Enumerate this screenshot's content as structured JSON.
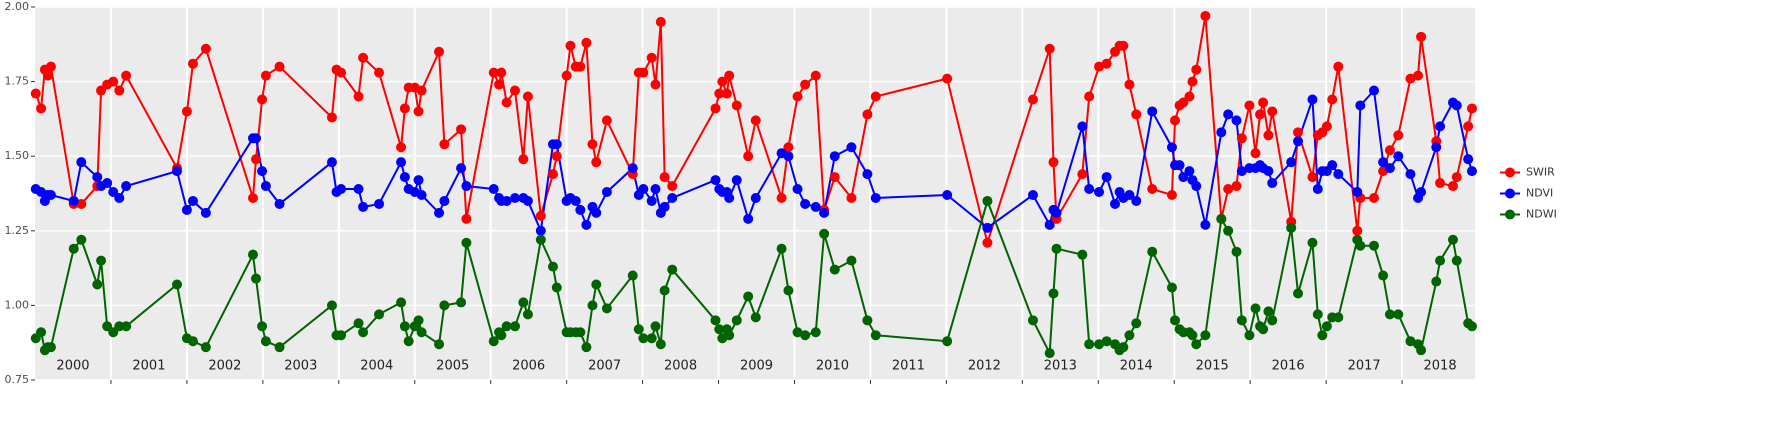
{
  "chart_data": {
    "type": "line",
    "x": [
      2000.01,
      2000.08,
      2000.13,
      2000.17,
      2000.21,
      2000.51,
      2000.61,
      2000.82,
      2000.87,
      2000.95,
      2001.03,
      2001.11,
      2001.2,
      2001.87,
      2002.0,
      2002.08,
      2002.25,
      2002.87,
      2002.91,
      2002.99,
      2003.04,
      2003.22,
      2003.91,
      2003.97,
      2004.03,
      2004.26,
      2004.32,
      2004.53,
      2004.82,
      2004.87,
      2004.92,
      2005.0,
      2005.05,
      2005.09,
      2005.32,
      2005.39,
      2005.61,
      2005.68,
      2006.04,
      2006.11,
      2006.14,
      2006.21,
      2006.32,
      2006.43,
      2006.49,
      2006.66,
      2006.82,
      2006.87,
      2007.0,
      2007.05,
      2007.12,
      2007.18,
      2007.26,
      2007.34,
      2007.39,
      2007.53,
      2007.87,
      2007.95,
      2008.01,
      2008.12,
      2008.17,
      2008.24,
      2008.29,
      2008.39,
      2008.96,
      2009.01,
      2009.05,
      2009.11,
      2009.14,
      2009.24,
      2009.39,
      2009.49,
      2009.83,
      2009.92,
      2010.04,
      2010.14,
      2010.28,
      2010.39,
      2010.53,
      2010.75,
      2010.96,
      2011.07,
      2012.01,
      2012.54,
      2013.14,
      2013.36,
      2013.41,
      2013.45,
      2013.79,
      2013.88,
      2014.01,
      2014.11,
      2014.22,
      2014.28,
      2014.33,
      2014.41,
      2014.5,
      2014.71,
      2014.97,
      2015.01,
      2015.07,
      2015.12,
      2015.2,
      2015.24,
      2015.29,
      2015.41,
      2015.62,
      2015.71,
      2015.82,
      2015.89,
      2015.99,
      2016.07,
      2016.13,
      2016.17,
      2016.24,
      2016.29,
      2016.54,
      2016.63,
      2016.82,
      2016.89,
      2016.95,
      2017.01,
      2017.08,
      2017.16,
      2017.41,
      2017.45,
      2017.63,
      2017.75,
      2017.84,
      2017.95,
      2018.11,
      2018.21,
      2018.25,
      2018.45,
      2018.5,
      2018.67,
      2018.72,
      2018.87,
      2018.92
    ],
    "series": [
      {
        "name": "SWIR",
        "color": "#ff0000",
        "values": [
          1.71,
          1.66,
          1.79,
          1.77,
          1.8,
          1.34,
          1.34,
          1.4,
          1.72,
          1.74,
          1.75,
          1.72,
          1.77,
          1.46,
          1.65,
          1.81,
          1.86,
          1.36,
          1.49,
          1.69,
          1.77,
          1.8,
          1.63,
          1.79,
          1.78,
          1.7,
          1.83,
          1.78,
          1.53,
          1.66,
          1.73,
          1.73,
          1.65,
          1.72,
          1.85,
          1.54,
          1.59,
          1.29,
          1.78,
          1.74,
          1.78,
          1.68,
          1.72,
          1.49,
          1.7,
          1.3,
          1.44,
          1.5,
          1.77,
          1.87,
          1.8,
          1.8,
          1.88,
          1.54,
          1.48,
          1.62,
          1.44,
          1.78,
          1.78,
          1.83,
          1.74,
          1.95,
          1.43,
          1.4,
          1.66,
          1.71,
          1.75,
          1.71,
          1.77,
          1.67,
          1.5,
          1.62,
          1.36,
          1.53,
          1.7,
          1.74,
          1.77,
          1.32,
          1.43,
          1.36,
          1.64,
          1.7,
          1.76,
          1.21,
          1.69,
          1.86,
          1.48,
          1.29,
          1.44,
          1.7,
          1.8,
          1.81,
          1.85,
          1.87,
          1.87,
          1.74,
          1.64,
          1.39,
          1.37,
          1.62,
          1.67,
          1.68,
          1.7,
          1.75,
          1.79,
          1.97,
          1.29,
          1.39,
          1.4,
          1.56,
          1.67,
          1.51,
          1.64,
          1.68,
          1.57,
          1.65,
          1.28,
          1.58,
          1.43,
          1.57,
          1.58,
          1.6,
          1.69,
          1.8,
          1.25,
          1.36,
          1.36,
          1.45,
          1.52,
          1.57,
          1.76,
          1.77,
          1.9,
          1.55,
          1.41,
          1.4,
          1.43,
          1.6,
          1.66
        ]
      },
      {
        "name": "NDVI",
        "color": "#0000ff",
        "values": [
          1.39,
          1.38,
          1.35,
          1.37,
          1.37,
          1.35,
          1.48,
          1.43,
          1.4,
          1.41,
          1.38,
          1.36,
          1.4,
          1.45,
          1.32,
          1.35,
          1.31,
          1.56,
          1.56,
          1.45,
          1.4,
          1.34,
          1.48,
          1.38,
          1.39,
          1.39,
          1.33,
          1.34,
          1.48,
          1.43,
          1.39,
          1.38,
          1.42,
          1.37,
          1.31,
          1.35,
          1.46,
          1.4,
          1.39,
          1.36,
          1.35,
          1.35,
          1.36,
          1.36,
          1.35,
          1.25,
          1.54,
          1.54,
          1.35,
          1.36,
          1.35,
          1.32,
          1.27,
          1.33,
          1.31,
          1.38,
          1.46,
          1.37,
          1.39,
          1.35,
          1.39,
          1.31,
          1.33,
          1.36,
          1.42,
          1.39,
          1.38,
          1.38,
          1.36,
          1.42,
          1.29,
          1.36,
          1.51,
          1.5,
          1.39,
          1.34,
          1.33,
          1.31,
          1.5,
          1.53,
          1.44,
          1.36,
          1.37,
          1.26,
          1.37,
          1.27,
          1.32,
          1.31,
          1.6,
          1.39,
          1.38,
          1.43,
          1.34,
          1.38,
          1.36,
          1.37,
          1.35,
          1.65,
          1.53,
          1.47,
          1.47,
          1.43,
          1.45,
          1.42,
          1.4,
          1.27,
          1.58,
          1.64,
          1.62,
          1.45,
          1.46,
          1.46,
          1.47,
          1.46,
          1.45,
          1.41,
          1.48,
          1.55,
          1.69,
          1.39,
          1.45,
          1.45,
          1.47,
          1.44,
          1.38,
          1.67,
          1.72,
          1.48,
          1.46,
          1.5,
          1.44,
          1.36,
          1.38,
          1.53,
          1.6,
          1.68,
          1.67,
          1.49,
          1.45
        ]
      },
      {
        "name": "NDWI",
        "color": "#006400",
        "values": [
          0.89,
          0.91,
          0.85,
          0.86,
          0.86,
          1.19,
          1.22,
          1.07,
          1.15,
          0.93,
          0.91,
          0.93,
          0.93,
          1.07,
          0.89,
          0.88,
          0.86,
          1.17,
          1.09,
          0.93,
          0.88,
          0.86,
          1.0,
          0.9,
          0.9,
          0.94,
          0.91,
          0.97,
          1.01,
          0.93,
          0.88,
          0.93,
          0.95,
          0.91,
          0.87,
          1.0,
          1.01,
          1.21,
          0.88,
          0.91,
          0.9,
          0.93,
          0.93,
          1.01,
          0.97,
          1.22,
          1.13,
          1.06,
          0.91,
          0.91,
          0.91,
          0.91,
          0.86,
          1.0,
          1.07,
          0.99,
          1.1,
          0.92,
          0.89,
          0.89,
          0.93,
          0.87,
          1.05,
          1.12,
          0.95,
          0.92,
          0.89,
          0.92,
          0.9,
          0.95,
          1.03,
          0.96,
          1.19,
          1.05,
          0.91,
          0.9,
          0.91,
          1.24,
          1.12,
          1.15,
          0.95,
          0.9,
          0.88,
          1.35,
          0.95,
          0.84,
          1.04,
          1.19,
          1.17,
          0.87,
          0.87,
          0.88,
          0.87,
          0.85,
          0.86,
          0.9,
          0.94,
          1.18,
          1.06,
          0.95,
          0.92,
          0.91,
          0.91,
          0.9,
          0.87,
          0.9,
          1.29,
          1.25,
          1.18,
          0.95,
          0.9,
          0.99,
          0.93,
          0.92,
          0.98,
          0.95,
          1.26,
          1.04,
          1.21,
          0.97,
          0.9,
          0.93,
          0.96,
          0.96,
          1.22,
          1.2,
          1.2,
          1.1,
          0.97,
          0.97,
          0.88,
          0.87,
          0.85,
          1.08,
          1.15,
          1.22,
          1.15,
          0.94,
          0.93
        ]
      }
    ],
    "xlim": [
      2000,
      2018.96
    ],
    "xticks": [
      {
        "value": 2000.5,
        "label": "2000"
      },
      {
        "value": 2001.5,
        "label": "2001"
      },
      {
        "value": 2002.5,
        "label": "2002"
      },
      {
        "value": 2003.5,
        "label": "2003"
      },
      {
        "value": 2004.5,
        "label": "2004"
      },
      {
        "value": 2005.5,
        "label": "2005"
      },
      {
        "value": 2006.5,
        "label": "2006"
      },
      {
        "value": 2007.5,
        "label": "2007"
      },
      {
        "value": 2008.5,
        "label": "2008"
      },
      {
        "value": 2009.5,
        "label": "2009"
      },
      {
        "value": 2010.5,
        "label": "2010"
      },
      {
        "value": 2011.5,
        "label": "2011"
      },
      {
        "value": 2012.5,
        "label": "2012"
      },
      {
        "value": 2013.5,
        "label": "2013"
      },
      {
        "value": 2014.5,
        "label": "2014"
      },
      {
        "value": 2015.5,
        "label": "2015"
      },
      {
        "value": 2016.5,
        "label": "2016"
      },
      {
        "value": 2017.5,
        "label": "2017"
      },
      {
        "value": 2018.5,
        "label": "2018"
      }
    ],
    "xgrid": [
      2001,
      2002,
      2003,
      2004,
      2005,
      2006,
      2007,
      2008,
      2009,
      2010,
      2011,
      2012,
      2013,
      2014,
      2015,
      2016,
      2017,
      2018
    ],
    "ylim": [
      0.75,
      2
    ],
    "yticks": [
      0.75,
      {
        "value": 1,
        "label": "1.00"
      },
      1.25,
      {
        "value": 1.5,
        "label": "1.50"
      },
      1.75,
      {
        "value": 2,
        "label": "2.00"
      }
    ],
    "grid": true,
    "legend": "right"
  }
}
